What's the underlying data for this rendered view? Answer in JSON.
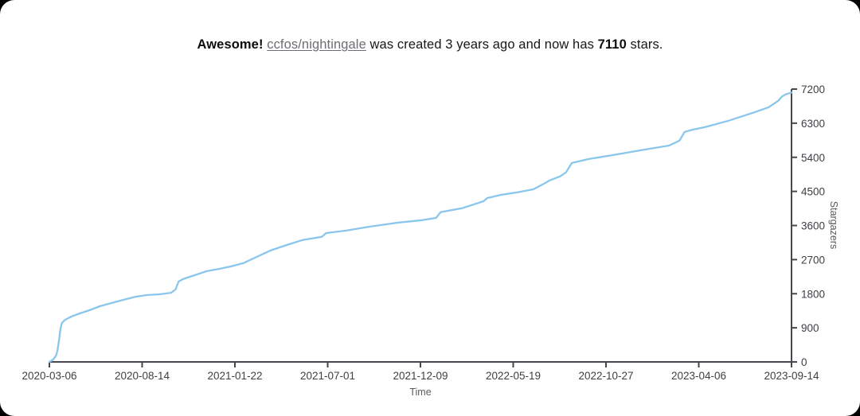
{
  "title": {
    "awesome": "Awesome!",
    "repo_link": "ccfos/nightingale",
    "middle_1": " was created 3 years ago and now has ",
    "star_count": "7110",
    "suffix": " stars."
  },
  "chart_data": {
    "type": "line",
    "title": "",
    "xlabel": "Time",
    "ylabel": "Stargazers",
    "legend": "none",
    "grid": false,
    "x_range": [
      "2020-03-06",
      "2023-09-14"
    ],
    "ylim": [
      0,
      7200
    ],
    "x_tick_labels": [
      "2020-03-06",
      "2020-08-14",
      "2021-01-22",
      "2021-07-01",
      "2021-12-09",
      "2022-05-19",
      "2022-10-27",
      "2023-04-06",
      "2023-09-14"
    ],
    "y_tick_labels": [
      "0",
      "900",
      "1800",
      "2700",
      "3600",
      "4500",
      "5400",
      "6300",
      "7200"
    ],
    "y_tick_values": [
      0,
      900,
      1800,
      2700,
      3600,
      4500,
      5400,
      6300,
      7200
    ],
    "y_axis_side": "right",
    "series": [
      {
        "name": "stargazers",
        "points_t_stars": [
          [
            0.0,
            0
          ],
          [
            0.005,
            60
          ],
          [
            0.009,
            170
          ],
          [
            0.011,
            315
          ],
          [
            0.013,
            570
          ],
          [
            0.015,
            880
          ],
          [
            0.017,
            1030
          ],
          [
            0.021,
            1110
          ],
          [
            0.03,
            1200
          ],
          [
            0.041,
            1280
          ],
          [
            0.054,
            1365
          ],
          [
            0.068,
            1470
          ],
          [
            0.084,
            1555
          ],
          [
            0.1,
            1640
          ],
          [
            0.116,
            1720
          ],
          [
            0.132,
            1765
          ],
          [
            0.148,
            1785
          ],
          [
            0.164,
            1825
          ],
          [
            0.17,
            1910
          ],
          [
            0.174,
            2120
          ],
          [
            0.18,
            2185
          ],
          [
            0.196,
            2290
          ],
          [
            0.212,
            2395
          ],
          [
            0.229,
            2455
          ],
          [
            0.245,
            2520
          ],
          [
            0.261,
            2605
          ],
          [
            0.277,
            2750
          ],
          [
            0.298,
            2940
          ],
          [
            0.32,
            3085
          ],
          [
            0.341,
            3215
          ],
          [
            0.367,
            3300
          ],
          [
            0.373,
            3400
          ],
          [
            0.4,
            3465
          ],
          [
            0.432,
            3570
          ],
          [
            0.47,
            3675
          ],
          [
            0.502,
            3740
          ],
          [
            0.521,
            3800
          ],
          [
            0.527,
            3950
          ],
          [
            0.556,
            4055
          ],
          [
            0.585,
            4240
          ],
          [
            0.59,
            4325
          ],
          [
            0.609,
            4410
          ],
          [
            0.631,
            4475
          ],
          [
            0.652,
            4555
          ],
          [
            0.668,
            4720
          ],
          [
            0.674,
            4790
          ],
          [
            0.688,
            4895
          ],
          [
            0.696,
            5000
          ],
          [
            0.704,
            5250
          ],
          [
            0.727,
            5355
          ],
          [
            0.76,
            5460
          ],
          [
            0.797,
            5585
          ],
          [
            0.835,
            5710
          ],
          [
            0.849,
            5840
          ],
          [
            0.856,
            6070
          ],
          [
            0.867,
            6130
          ],
          [
            0.883,
            6195
          ],
          [
            0.915,
            6365
          ],
          [
            0.948,
            6575
          ],
          [
            0.969,
            6720
          ],
          [
            0.982,
            6890
          ],
          [
            0.987,
            7000
          ],
          [
            0.992,
            7060
          ],
          [
            1.0,
            7110
          ]
        ]
      }
    ],
    "colors": {
      "line": "#8ac6ec",
      "axis": "#47484d",
      "tick_label": "#3e3f44",
      "axis_title": "#58595d"
    }
  }
}
